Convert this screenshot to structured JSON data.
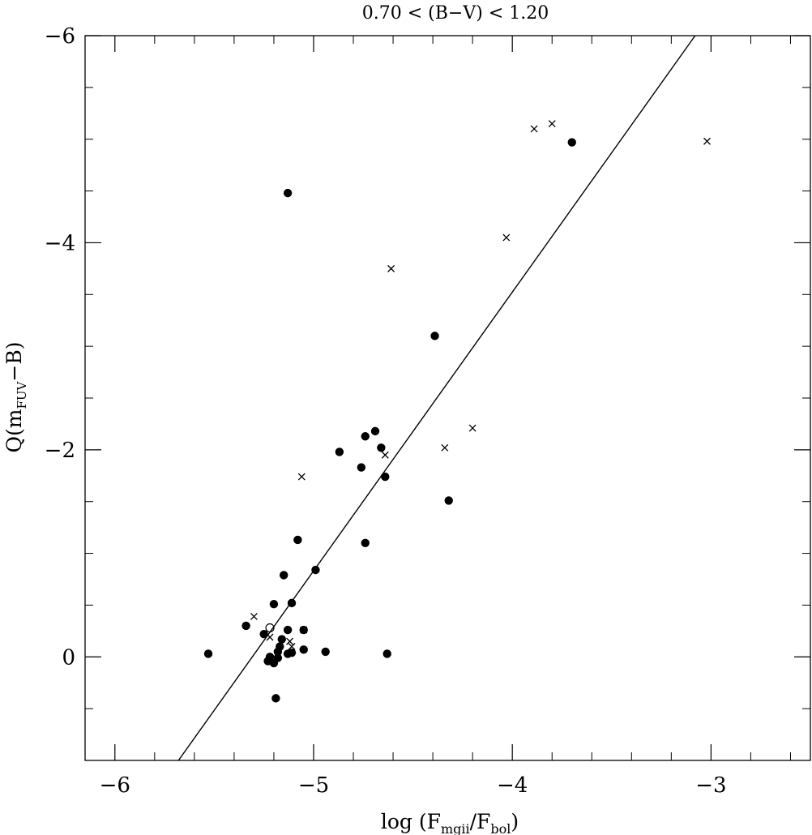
{
  "chart_data": {
    "type": "scatter",
    "title": "0.70 < (B−V) < 1.20",
    "xlabel": {
      "main": "log (F",
      "sub1": "mgii",
      "mid": "/F",
      "sub2": "bol",
      "end": ")"
    },
    "ylabel": {
      "main": "Q(m",
      "sub": "FUV",
      "end": "−B)"
    },
    "xlim": [
      -6.15,
      -2.5
    ],
    "ylim": [
      1.0,
      -6.0
    ],
    "y_inverted": true,
    "grid": false,
    "x_ticks": [
      {
        "value": -6,
        "label": "−6"
      },
      {
        "value": -5,
        "label": "−5"
      },
      {
        "value": -4,
        "label": "−4"
      },
      {
        "value": -3,
        "label": "−3"
      }
    ],
    "y_ticks": [
      {
        "value": -6,
        "label": "−6"
      },
      {
        "value": -4,
        "label": "−4"
      },
      {
        "value": -2,
        "label": "−2"
      },
      {
        "value": 0,
        "label": "0"
      }
    ],
    "x_minor_step": 0.2,
    "y_minor_step": 0.5,
    "series": [
      {
        "marker": "filled-circle",
        "points": [
          [
            -5.53,
            -0.03
          ],
          [
            -5.13,
            -4.48
          ],
          [
            -3.7,
            -4.97
          ],
          [
            -4.39,
            -3.1
          ],
          [
            -4.69,
            -2.18
          ],
          [
            -4.74,
            -2.13
          ],
          [
            -4.66,
            -2.02
          ],
          [
            -4.87,
            -1.98
          ],
          [
            -4.76,
            -1.83
          ],
          [
            -4.64,
            -1.74
          ],
          [
            -4.32,
            -1.51
          ],
          [
            -5.08,
            -1.13
          ],
          [
            -4.74,
            -1.1
          ],
          [
            -4.99,
            -0.84
          ],
          [
            -5.15,
            -0.79
          ],
          [
            -5.11,
            -0.52
          ],
          [
            -5.2,
            -0.51
          ],
          [
            -5.34,
            -0.3
          ],
          [
            -5.25,
            -0.22
          ],
          [
            -5.05,
            -0.26
          ],
          [
            -5.13,
            -0.26
          ],
          [
            -5.16,
            -0.17
          ],
          [
            -5.17,
            -0.1
          ],
          [
            -5.18,
            -0.05
          ],
          [
            -5.05,
            -0.07
          ],
          [
            -4.94,
            -0.05
          ],
          [
            -5.13,
            -0.03
          ],
          [
            -5.11,
            -0.04
          ],
          [
            -5.18,
            0.01
          ],
          [
            -5.22,
            0.0
          ],
          [
            -4.63,
            -0.03
          ],
          [
            -5.23,
            0.04
          ],
          [
            -5.2,
            0.06
          ],
          [
            -5.19,
            0.4
          ]
        ]
      },
      {
        "marker": "cross",
        "points": [
          [
            -3.89,
            -5.1
          ],
          [
            -3.8,
            -5.15
          ],
          [
            -3.02,
            -4.98
          ],
          [
            -4.03,
            -4.05
          ],
          [
            -4.61,
            -3.75
          ],
          [
            -4.2,
            -2.21
          ],
          [
            -4.34,
            -2.02
          ],
          [
            -4.64,
            -1.95
          ],
          [
            -5.06,
            -1.74
          ],
          [
            -5.3,
            -0.39
          ],
          [
            -5.22,
            -0.19
          ],
          [
            -5.12,
            -0.15
          ],
          [
            -5.11,
            -0.1
          ],
          [
            -5.05,
            -0.26
          ]
        ]
      },
      {
        "marker": "open-circle",
        "points": [
          [
            -5.22,
            -0.28
          ]
        ]
      }
    ],
    "fit_line": {
      "x": [
        -5.68,
        -3.08
      ],
      "y": [
        1.0,
        -6.0
      ]
    }
  }
}
